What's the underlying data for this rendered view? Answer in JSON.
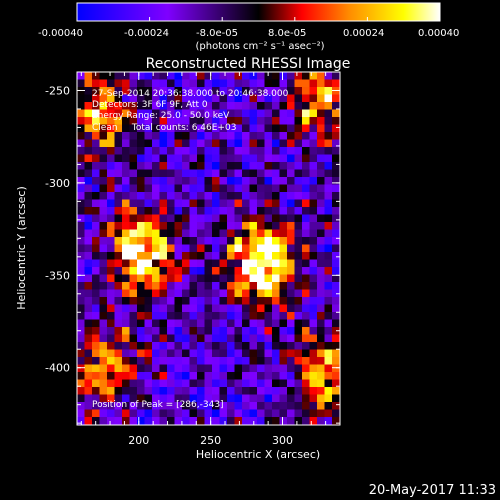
{
  "colorbar": {
    "ticks": [
      "-0.00040",
      "-0.00024",
      "-8.0e-05",
      "8.0e-05",
      "0.00024",
      "0.00040"
    ],
    "tick_values": [
      -0.0004,
      -0.00024,
      -8e-05,
      8e-05,
      0.00024,
      0.0004
    ],
    "range": [
      -0.0004,
      0.0004
    ],
    "unit": "(photons cm⁻² s⁻¹ asec⁻²)",
    "colors": [
      "#0000ff",
      "#7f00ff",
      "#ff0000",
      "#ff8c00",
      "#ffff00",
      "#ffffff"
    ]
  },
  "image": {
    "title": "Reconstructed RHESSI Image",
    "xlabel": "Heliocentric X (arcsec)",
    "ylabel": "Heliocentric Y (arcsec)",
    "x_ticks": [
      "200",
      "250",
      "300"
    ],
    "x_tick_values": [
      200,
      250,
      300
    ],
    "y_ticks": [
      "-250",
      "-300",
      "-350",
      "-400"
    ],
    "y_tick_values": [
      -250,
      -300,
      -350,
      -400
    ],
    "xlim": [
      157,
      340
    ],
    "ylim": [
      -431,
      -240
    ],
    "sources": [
      {
        "x": 286,
        "y": -343,
        "strength": 1.0
      },
      {
        "x": 203,
        "y": -338,
        "strength": 0.85
      },
      {
        "x": 325,
        "y": -255,
        "strength": 0.55
      },
      {
        "x": 175,
        "y": -262,
        "strength": 0.55
      },
      {
        "x": 330,
        "y": -405,
        "strength": 0.6
      },
      {
        "x": 175,
        "y": -400,
        "strength": 0.6
      }
    ],
    "overlay": {
      "line1": "27-Sep-2014 20:36:38.000 to 20:46:38.000",
      "line2": "Detectors: 3F 6F 9F, Att 0",
      "line3": "Energy Range: 25.0 - 50.0 keV",
      "line4": "Clean     Total counts: 6.46E+03",
      "peak": "Position of Peak = [286,-343]"
    }
  },
  "timestamp": "20-May-2017 11:33"
}
